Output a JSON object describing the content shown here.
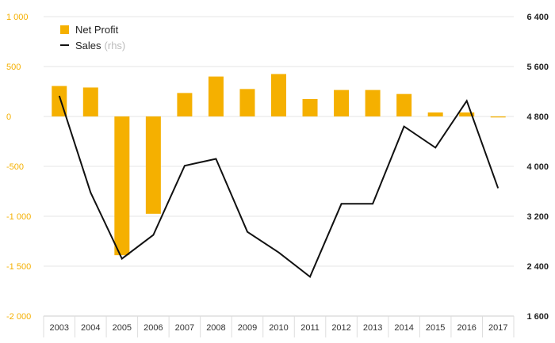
{
  "colors": {
    "bar": "#f5b000",
    "line": "#111111",
    "grid": "#e6e6e6",
    "left_ticks": "#f5b000"
  },
  "legend": {
    "bar_label": "Net Profit",
    "line_label": "Sales",
    "line_suffix": "(rhs)"
  },
  "chart_data": {
    "type": "bar",
    "title": "",
    "xlabel": "",
    "ylabel": "",
    "categories": [
      "2003",
      "2004",
      "2005",
      "2006",
      "2007",
      "2008",
      "2009",
      "2010",
      "2011",
      "2012",
      "2013",
      "2014",
      "2015",
      "2016",
      "2017"
    ],
    "series": [
      {
        "name": "Net Profit",
        "type": "bar",
        "axis": "left",
        "values": [
          305,
          290,
          -1390,
          -975,
          235,
          400,
          275,
          425,
          175,
          265,
          265,
          225,
          40,
          40,
          -10
        ]
      },
      {
        "name": "Sales",
        "type": "line",
        "axis": "right",
        "values": [
          5130,
          3580,
          2520,
          2900,
          4010,
          4120,
          2950,
          2620,
          2230,
          3400,
          3400,
          4640,
          4300,
          5050,
          3650
        ]
      }
    ],
    "ylim": [
      -2000,
      1000
    ],
    "y_ticks": [
      1000,
      500,
      0,
      -500,
      -1000,
      -1500,
      -2000
    ],
    "y_tick_labels": [
      "1 000",
      "500",
      "0",
      "-500",
      "-1 000",
      "-1 500",
      "-2 000"
    ],
    "y2lim": [
      1600,
      6400
    ],
    "y2_ticks": [
      6400,
      5600,
      4800,
      4000,
      3200,
      2400,
      1600
    ],
    "y2_tick_labels": [
      "6 400",
      "5 600",
      "4 800",
      "4 000",
      "3 200",
      "2 400",
      "1 600"
    ],
    "grid": true,
    "legend_position": "top-left"
  }
}
